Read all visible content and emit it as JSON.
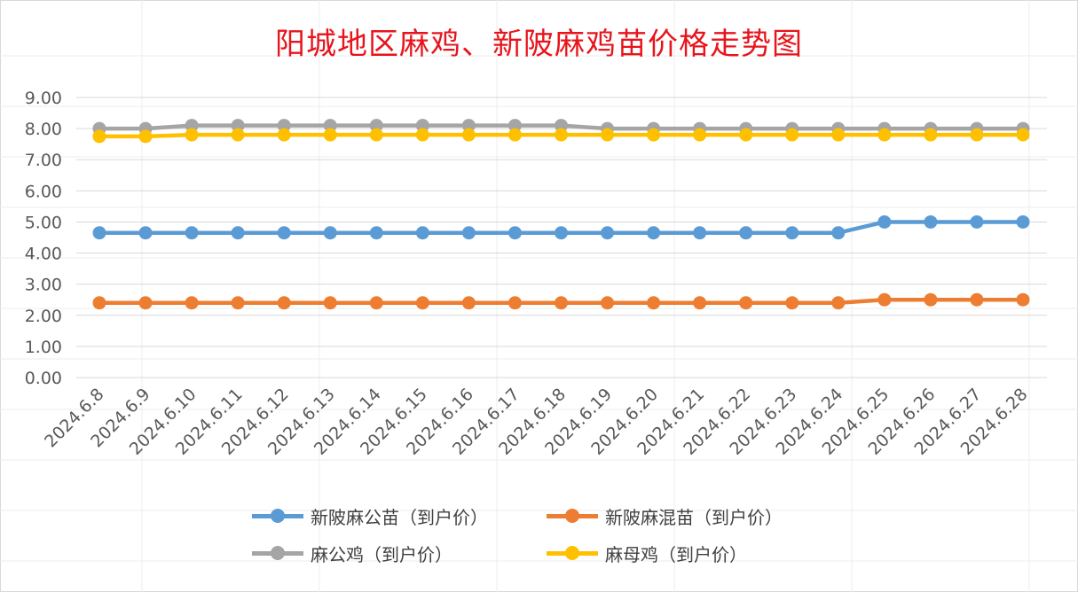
{
  "chart_data": {
    "type": "line",
    "title": "阳城地区麻鸡、新陂麻鸡苗价格走势图",
    "categories": [
      "2024.6.8",
      "2024.6.9",
      "2024.6.10",
      "2024.6.11",
      "2024.6.12",
      "2024.6.13",
      "2024.6.14",
      "2024.6.15",
      "2024.6.16",
      "2024.6.17",
      "2024.6.18",
      "2024.6.19",
      "2024.6.20",
      "2024.6.21",
      "2024.6.22",
      "2024.6.23",
      "2024.6.24",
      "2024.6.25",
      "2024.6.26",
      "2024.6.27",
      "2024.6.28"
    ],
    "ylim": [
      0,
      9
    ],
    "yticks": [
      "0.00",
      "1.00",
      "2.00",
      "3.00",
      "4.00",
      "5.00",
      "6.00",
      "7.00",
      "8.00",
      "9.00"
    ],
    "grid": true,
    "legend_position": "bottom",
    "series": [
      {
        "name": "新陂麻公苗（到户价）",
        "color": "#5b9bd5",
        "values": [
          4.65,
          4.65,
          4.65,
          4.65,
          4.65,
          4.65,
          4.65,
          4.65,
          4.65,
          4.65,
          4.65,
          4.65,
          4.65,
          4.65,
          4.65,
          4.65,
          4.65,
          5.0,
          5.0,
          5.0,
          5.0
        ]
      },
      {
        "name": "新陂麻混苗（到户价）",
        "color": "#ed7d31",
        "values": [
          2.4,
          2.4,
          2.4,
          2.4,
          2.4,
          2.4,
          2.4,
          2.4,
          2.4,
          2.4,
          2.4,
          2.4,
          2.4,
          2.4,
          2.4,
          2.4,
          2.4,
          2.5,
          2.5,
          2.5,
          2.5
        ]
      },
      {
        "name": "麻公鸡（到户价）",
        "color": "#a5a5a5",
        "values": [
          8.0,
          8.0,
          8.1,
          8.1,
          8.1,
          8.1,
          8.1,
          8.1,
          8.1,
          8.1,
          8.1,
          8.0,
          8.0,
          8.0,
          8.0,
          8.0,
          8.0,
          8.0,
          8.0,
          8.0,
          8.0
        ]
      },
      {
        "name": "麻母鸡（到户价）",
        "color": "#ffc000",
        "values": [
          7.75,
          7.75,
          7.8,
          7.8,
          7.8,
          7.8,
          7.8,
          7.8,
          7.8,
          7.8,
          7.8,
          7.8,
          7.8,
          7.8,
          7.8,
          7.8,
          7.8,
          7.8,
          7.8,
          7.8,
          7.8
        ]
      }
    ]
  }
}
